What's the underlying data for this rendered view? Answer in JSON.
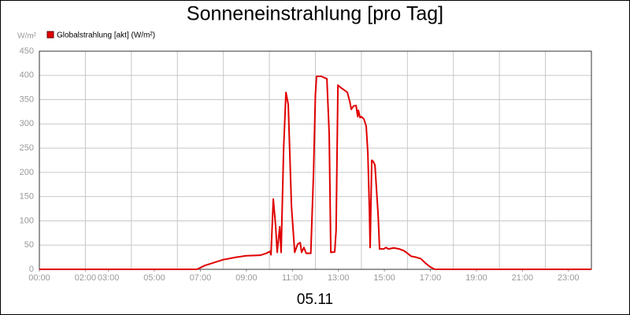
{
  "chart_data": {
    "type": "line",
    "title": "Sonneneinstrahlung [pro Tag]",
    "y_unit": "W/m²",
    "xlabel": "05.11",
    "series": [
      {
        "name": "Globalstrahlung [akt] (W/m²)",
        "color": "#e00000",
        "x": [
          0,
          6.85,
          7.2,
          8.0,
          8.56,
          9.0,
          9.6,
          9.86,
          10.03,
          10.07,
          10.17,
          10.27,
          10.34,
          10.45,
          10.51,
          10.62,
          10.72,
          10.82,
          10.96,
          11.1,
          11.23,
          11.34,
          11.4,
          11.5,
          11.6,
          11.8,
          11.92,
          12.0,
          12.05,
          12.26,
          12.5,
          12.6,
          12.67,
          12.84,
          12.9,
          12.98,
          13.1,
          13.25,
          13.39,
          13.5,
          13.56,
          13.66,
          13.77,
          13.84,
          13.87,
          13.94,
          14.0,
          14.11,
          14.21,
          14.28,
          14.35,
          14.38,
          14.45,
          14.52,
          14.59,
          14.73,
          14.79,
          14.97,
          15.07,
          15.17,
          15.41,
          15.65,
          15.86,
          16.03,
          16.16,
          16.37,
          16.58,
          16.78,
          16.99,
          17.19,
          24
        ],
        "values": [
          0,
          0,
          8,
          20,
          25,
          28,
          29,
          33,
          37,
          30,
          145,
          90,
          35,
          88,
          35,
          250,
          365,
          340,
          130,
          35,
          52,
          55,
          35,
          45,
          33,
          33,
          200,
          360,
          398,
          398,
          393,
          280,
          35,
          36,
          80,
          380,
          375,
          370,
          365,
          345,
          330,
          337,
          338,
          315,
          328,
          313,
          315,
          310,
          295,
          240,
          120,
          45,
          225,
          222,
          215,
          110,
          42,
          42,
          45,
          42,
          44,
          42,
          38,
          32,
          27,
          25,
          22,
          13,
          5,
          0,
          0
        ]
      }
    ],
    "xlim": [
      0,
      24
    ],
    "xticks": [
      {
        "value": 0,
        "label": "00:00"
      },
      {
        "value": 2,
        "label": "02:00"
      },
      {
        "value": 3,
        "label": "03:00"
      },
      {
        "value": 5,
        "label": "05:00"
      },
      {
        "value": 7,
        "label": "07:00"
      },
      {
        "value": 9,
        "label": "09:00"
      },
      {
        "value": 11,
        "label": "11:00"
      },
      {
        "value": 13,
        "label": "13:00"
      },
      {
        "value": 15,
        "label": "15:00"
      },
      {
        "value": 17,
        "label": "17:00"
      },
      {
        "value": 19,
        "label": "19:00"
      },
      {
        "value": 21,
        "label": "21:00"
      },
      {
        "value": 23,
        "label": "23:00"
      }
    ],
    "x_grid_every": 2,
    "ylim": [
      0,
      450
    ],
    "yticks": [
      0,
      50,
      100,
      150,
      200,
      250,
      300,
      350,
      400,
      450
    ],
    "grid": true
  }
}
